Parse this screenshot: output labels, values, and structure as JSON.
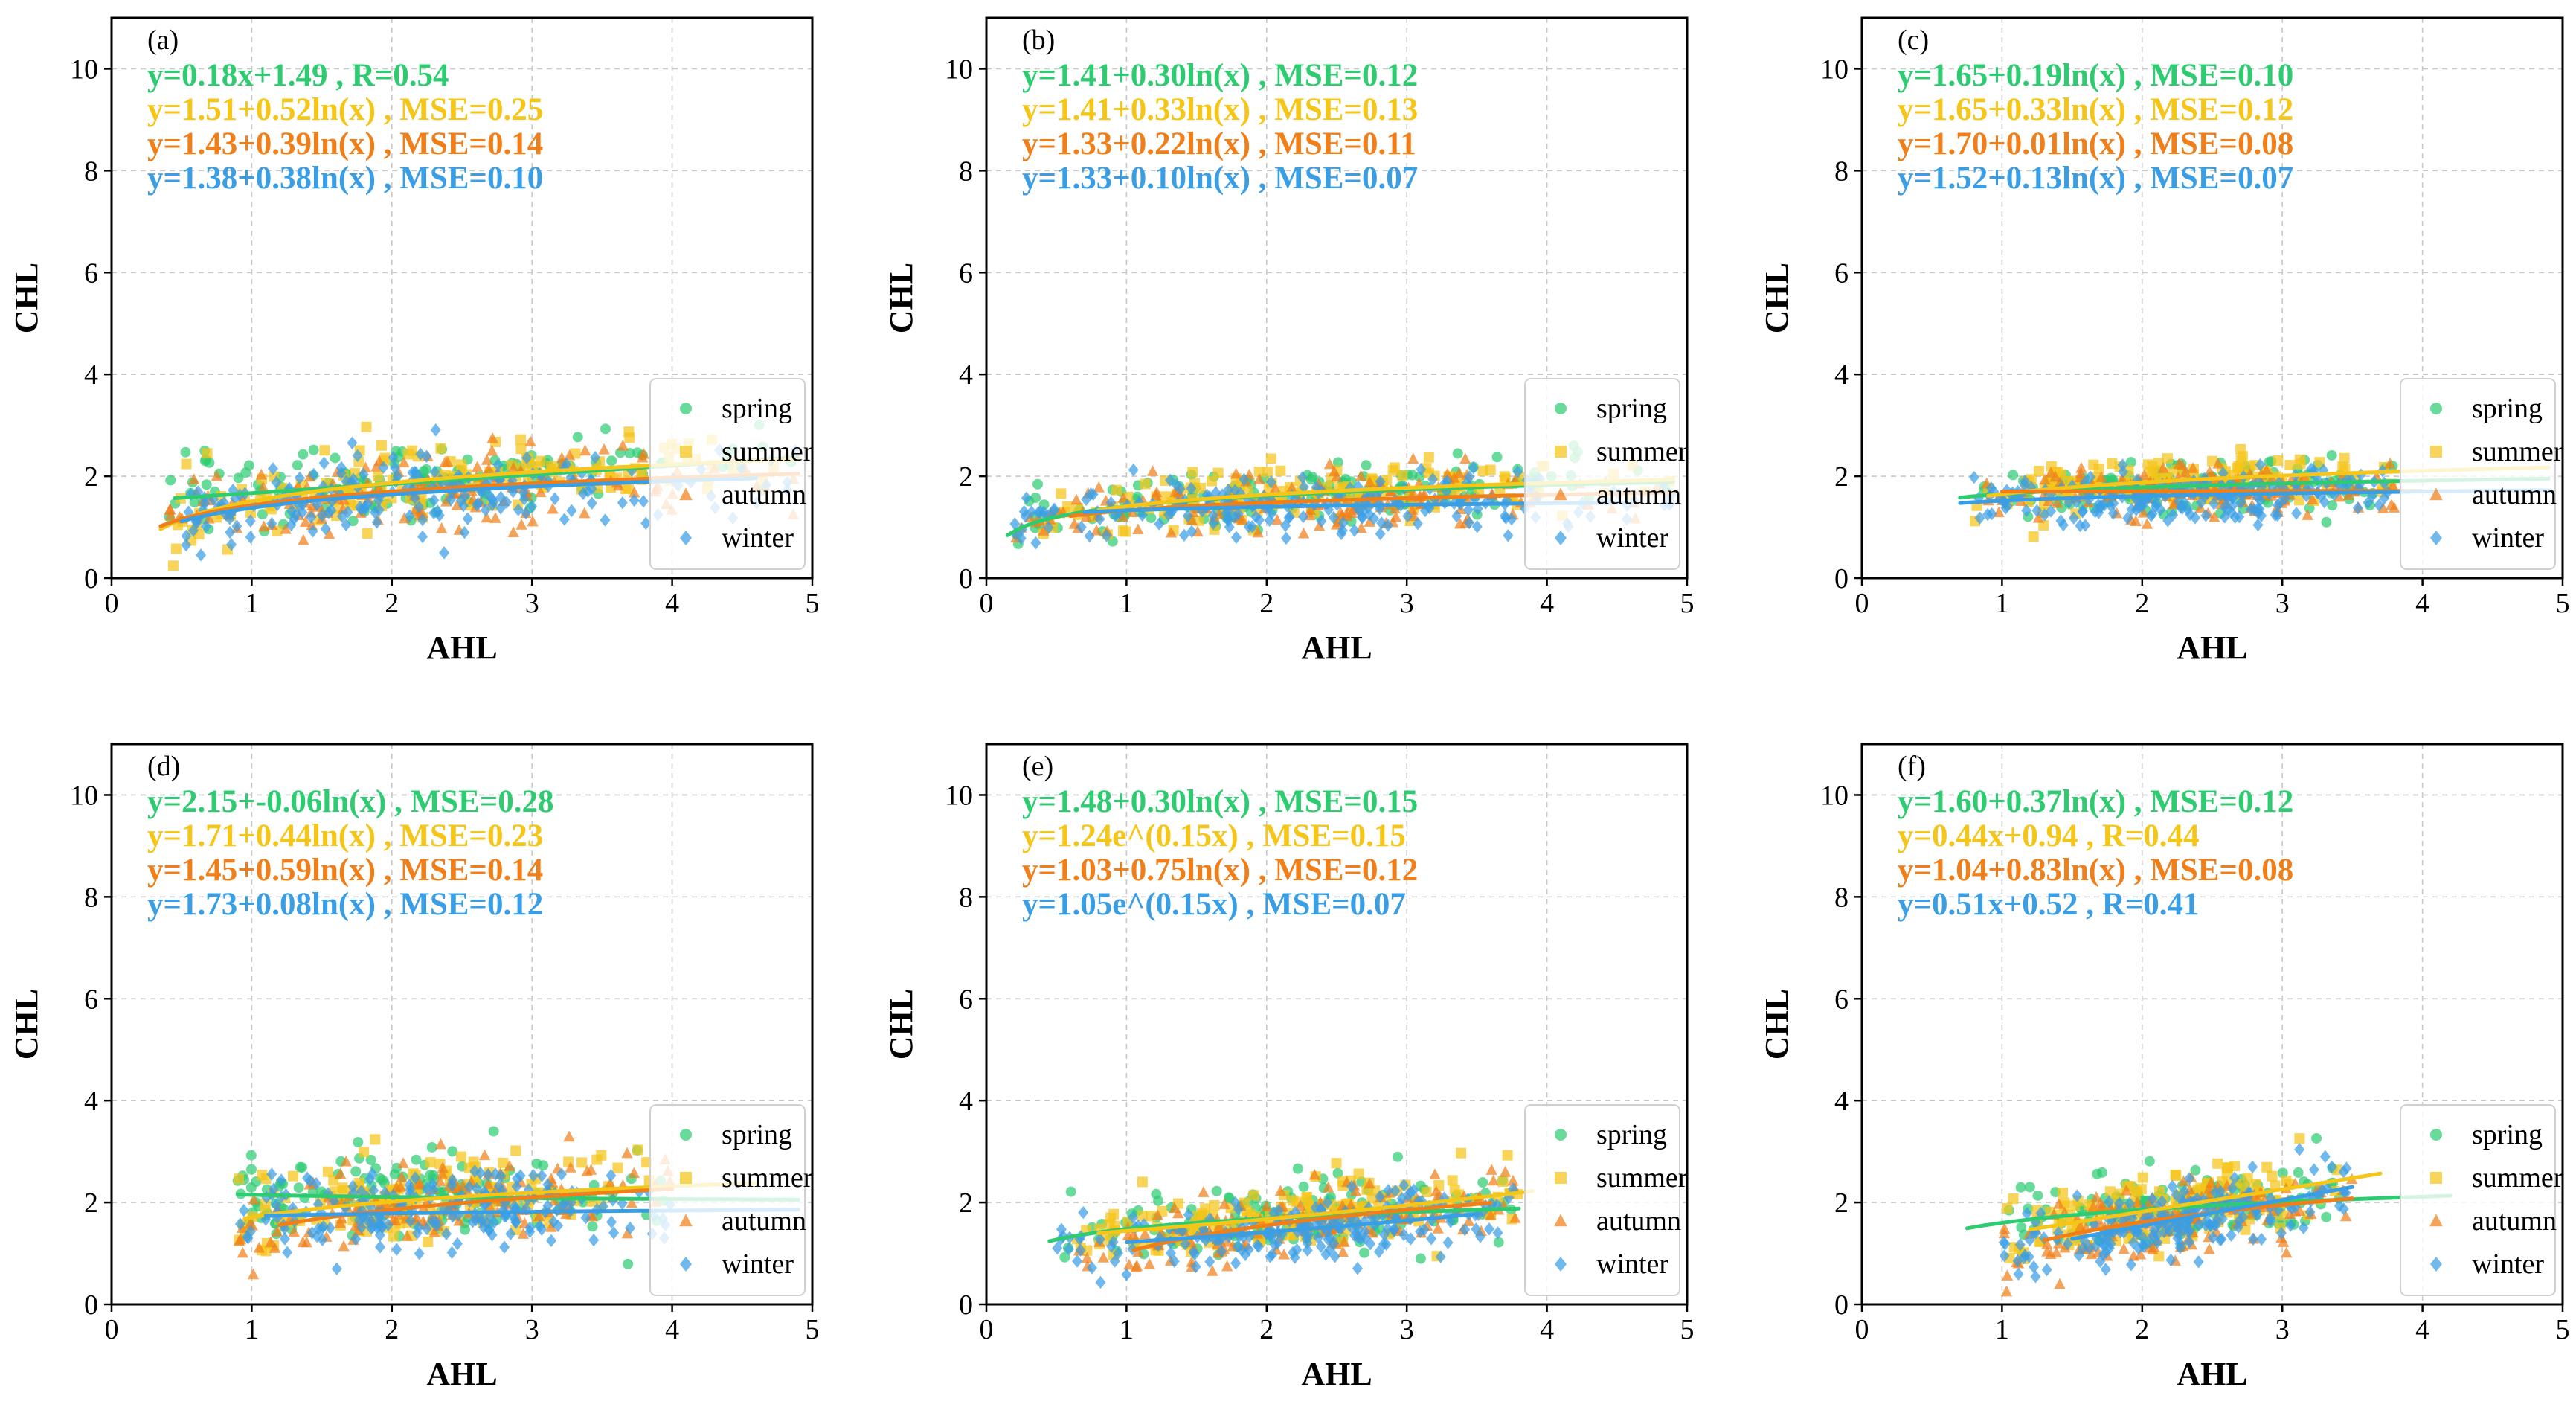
{
  "colors": {
    "spring": "#2ecc71",
    "summer": "#f5c518",
    "autumn": "#f07f1a",
    "winter": "#3a9ee4",
    "grid": "#c8c8c8",
    "axis": "#000000"
  },
  "chart_data": [
    {
      "type": "scatter",
      "panel_label": "(a)",
      "xlabel": "AHL",
      "ylabel": "CHL",
      "xlim": [
        0,
        5
      ],
      "ylim": [
        0,
        11
      ],
      "xticks": [
        0,
        1,
        2,
        3,
        4,
        5
      ],
      "yticks": [
        0,
        2,
        4,
        6,
        8,
        10
      ],
      "grid": true,
      "legend": [
        "spring",
        "summer",
        "autumn",
        "winter"
      ],
      "legend_position": "lower-right",
      "cloud": {
        "x_min": 0.4,
        "x_max": 4.9,
        "y_center": 1.8,
        "y_spread": 0.45
      },
      "series": [
        {
          "name": "spring",
          "equation": "y=0.18x+1.49 , R=0.54",
          "fit": "linear",
          "a": 1.49,
          "b": 0.18,
          "fit_range": [
            0.45,
            4.9
          ]
        },
        {
          "name": "summer",
          "equation": "y=1.51+0.52ln(x) , MSE=0.25",
          "fit": "log",
          "a": 1.51,
          "b": 0.52,
          "fit_range": [
            0.35,
            4.9
          ]
        },
        {
          "name": "autumn",
          "equation": "y=1.43+0.39ln(x) , MSE=0.14",
          "fit": "log",
          "a": 1.43,
          "b": 0.39,
          "fit_range": [
            0.35,
            4.9
          ]
        },
        {
          "name": "winter",
          "equation": "y=1.38+0.38ln(x) , MSE=0.10",
          "fit": "log",
          "a": 1.38,
          "b": 0.38,
          "fit_range": [
            0.5,
            4.6
          ]
        }
      ]
    },
    {
      "type": "scatter",
      "panel_label": "(b)",
      "xlabel": "AHL",
      "ylabel": "CHL",
      "xlim": [
        0,
        5
      ],
      "ylim": [
        0,
        11
      ],
      "xticks": [
        0,
        1,
        2,
        3,
        4,
        5
      ],
      "yticks": [
        0,
        2,
        4,
        6,
        8,
        10
      ],
      "grid": true,
      "legend": [
        "spring",
        "summer",
        "autumn",
        "winter"
      ],
      "legend_position": "lower-right",
      "cloud": {
        "x_min": 0.2,
        "x_max": 4.9,
        "y_center": 1.5,
        "y_spread": 0.35
      },
      "series": [
        {
          "name": "spring",
          "equation": "y=1.41+0.30ln(x) , MSE=0.12",
          "fit": "log",
          "a": 1.41,
          "b": 0.3,
          "fit_range": [
            0.15,
            4.9
          ]
        },
        {
          "name": "summer",
          "equation": "y=1.41+0.33ln(x) , MSE=0.13",
          "fit": "log",
          "a": 1.41,
          "b": 0.33,
          "fit_range": [
            0.8,
            4.9
          ]
        },
        {
          "name": "autumn",
          "equation": "y=1.33+0.22ln(x) , MSE=0.11",
          "fit": "log",
          "a": 1.33,
          "b": 0.22,
          "fit_range": [
            0.6,
            4.9
          ]
        },
        {
          "name": "winter",
          "equation": "y=1.33+0.10ln(x) , MSE=0.07",
          "fit": "log",
          "a": 1.33,
          "b": 0.1,
          "fit_range": [
            0.7,
            4.6
          ]
        }
      ]
    },
    {
      "type": "scatter",
      "panel_label": "(c)",
      "xlabel": "AHL",
      "ylabel": "CHL",
      "xlim": [
        0,
        5
      ],
      "ylim": [
        0,
        11
      ],
      "xticks": [
        0,
        1,
        2,
        3,
        4,
        5
      ],
      "yticks": [
        0,
        2,
        4,
        6,
        8,
        10
      ],
      "grid": true,
      "legend": [
        "spring",
        "summer",
        "autumn",
        "winter"
      ],
      "legend_position": "lower-right",
      "cloud": {
        "x_min": 0.8,
        "x_max": 3.8,
        "y_center": 1.75,
        "y_spread": 0.3
      },
      "series": [
        {
          "name": "spring",
          "equation": "y=1.65+0.19ln(x) , MSE=0.10",
          "fit": "log",
          "a": 1.65,
          "b": 0.19,
          "fit_range": [
            0.7,
            4.9
          ]
        },
        {
          "name": "summer",
          "equation": "y=1.65+0.33ln(x) , MSE=0.12",
          "fit": "log",
          "a": 1.65,
          "b": 0.33,
          "fit_range": [
            0.9,
            4.9
          ]
        },
        {
          "name": "autumn",
          "equation": "y=1.70+0.01ln(x) , MSE=0.08",
          "fit": "log",
          "a": 1.7,
          "b": 0.01,
          "fit_range": [
            1.0,
            4.0
          ]
        },
        {
          "name": "winter",
          "equation": "y=1.52+0.13ln(x) , MSE=0.07",
          "fit": "log",
          "a": 1.52,
          "b": 0.13,
          "fit_range": [
            0.7,
            4.9
          ]
        }
      ]
    },
    {
      "type": "scatter",
      "panel_label": "(d)",
      "xlabel": "AHL",
      "ylabel": "CHL",
      "xlim": [
        0,
        5
      ],
      "ylim": [
        0,
        11
      ],
      "xticks": [
        0,
        1,
        2,
        3,
        4,
        5
      ],
      "yticks": [
        0,
        2,
        4,
        6,
        8,
        10
      ],
      "grid": true,
      "legend": [
        "spring",
        "summer",
        "autumn",
        "winter"
      ],
      "legend_position": "lower-right",
      "cloud": {
        "x_min": 0.9,
        "x_max": 4.0,
        "y_center": 1.95,
        "y_spread": 0.45
      },
      "series": [
        {
          "name": "spring",
          "equation": "y=2.15+-0.06ln(x) , MSE=0.28",
          "fit": "log",
          "a": 2.15,
          "b": -0.06,
          "fit_range": [
            0.9,
            4.9
          ]
        },
        {
          "name": "summer",
          "equation": "y=1.71+0.44ln(x) , MSE=0.23",
          "fit": "log",
          "a": 1.71,
          "b": 0.44,
          "fit_range": [
            0.95,
            4.6
          ]
        },
        {
          "name": "autumn",
          "equation": "y=1.45+0.59ln(x) , MSE=0.14",
          "fit": "log",
          "a": 1.45,
          "b": 0.59,
          "fit_range": [
            1.2,
            4.0
          ]
        },
        {
          "name": "winter",
          "equation": "y=1.73+0.08ln(x) , MSE=0.12",
          "fit": "log",
          "a": 1.73,
          "b": 0.08,
          "fit_range": [
            1.1,
            4.9
          ]
        }
      ]
    },
    {
      "type": "scatter",
      "panel_label": "(e)",
      "xlabel": "AHL",
      "ylabel": "CHL",
      "xlim": [
        0,
        5
      ],
      "ylim": [
        0,
        11
      ],
      "xticks": [
        0,
        1,
        2,
        3,
        4,
        5
      ],
      "yticks": [
        0,
        2,
        4,
        6,
        8,
        10
      ],
      "grid": true,
      "legend": [
        "spring",
        "summer",
        "autumn",
        "winter"
      ],
      "legend_position": "lower-right",
      "cloud": {
        "x_min": 0.5,
        "x_max": 3.8,
        "y_center": 1.65,
        "y_spread": 0.4
      },
      "series": [
        {
          "name": "spring",
          "equation": "y=1.48+0.30ln(x) , MSE=0.15",
          "fit": "log",
          "a": 1.48,
          "b": 0.3,
          "fit_range": [
            0.45,
            3.8
          ]
        },
        {
          "name": "summer",
          "equation": "y=1.24e^(0.15x) , MSE=0.15",
          "fit": "exp",
          "a": 1.24,
          "b": 0.15,
          "fit_range": [
            0.8,
            3.9
          ]
        },
        {
          "name": "autumn",
          "equation": "y=1.03+0.75ln(x) , MSE=0.12",
          "fit": "log",
          "a": 1.03,
          "b": 0.75,
          "fit_range": [
            1.05,
            3.6
          ]
        },
        {
          "name": "winter",
          "equation": "y=1.05e^(0.15x) , MSE=0.07",
          "fit": "exp",
          "a": 1.05,
          "b": 0.15,
          "fit_range": [
            1.0,
            3.5
          ]
        }
      ]
    },
    {
      "type": "scatter",
      "panel_label": "(f)",
      "xlabel": "AHL",
      "ylabel": "CHL",
      "xlim": [
        0,
        5
      ],
      "ylim": [
        0,
        11
      ],
      "xticks": [
        0,
        1,
        2,
        3,
        4,
        5
      ],
      "yticks": [
        0,
        2,
        4,
        6,
        8,
        10
      ],
      "grid": true,
      "legend": [
        "spring",
        "summer",
        "autumn",
        "winter"
      ],
      "legend_position": "lower-right",
      "cloud": {
        "x_min": 1.0,
        "x_max": 3.5,
        "y_center": 1.85,
        "y_spread": 0.4
      },
      "series": [
        {
          "name": "spring",
          "equation": "y=1.60+0.37ln(x) , MSE=0.12",
          "fit": "log",
          "a": 1.6,
          "b": 0.37,
          "fit_range": [
            0.75,
            4.2
          ]
        },
        {
          "name": "summer",
          "equation": "y=0.44x+0.94 , R=0.44",
          "fit": "linear",
          "a": 0.94,
          "b": 0.44,
          "fit_range": [
            1.2,
            3.7
          ]
        },
        {
          "name": "autumn",
          "equation": "y=1.04+0.83ln(x) , MSE=0.08",
          "fit": "log",
          "a": 1.04,
          "b": 0.83,
          "fit_range": [
            1.3,
            3.5
          ]
        },
        {
          "name": "winter",
          "equation": "y=0.51x+0.52 , R=0.41",
          "fit": "linear",
          "a": 0.52,
          "b": 0.51,
          "fit_range": [
            1.5,
            3.5
          ]
        }
      ]
    }
  ]
}
